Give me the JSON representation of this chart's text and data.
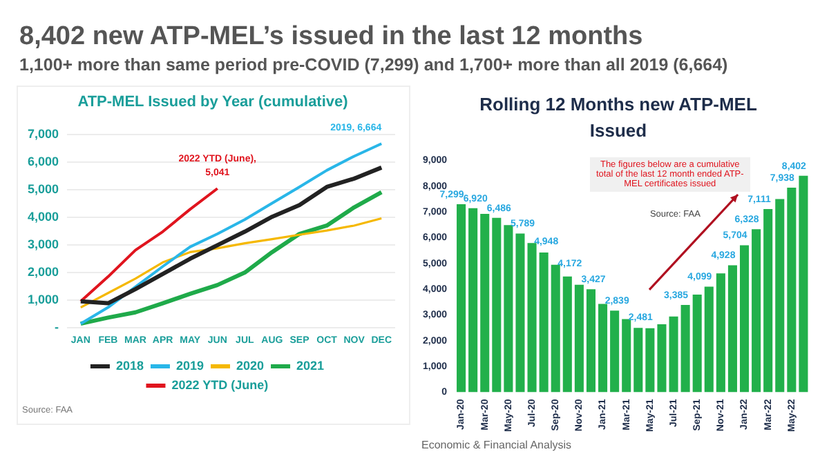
{
  "chart_data": [
    {
      "type": "line",
      "title": "ATP-MEL Issued by Year (cumulative)",
      "categories": [
        "JAN",
        "FEB",
        "MAR",
        "APR",
        "MAY",
        "JUN",
        "JUL",
        "AUG",
        "SEP",
        "OCT",
        "NOV",
        "DEC"
      ],
      "series": [
        {
          "name": "2018",
          "color": "#222222",
          "values": [
            960,
            890,
            1400,
            1950,
            2500,
            2990,
            3480,
            4020,
            4440,
            5100,
            5400,
            5800
          ]
        },
        {
          "name": "2019",
          "color": "#29b6e8",
          "values": [
            150,
            740,
            1480,
            2220,
            2930,
            3400,
            3920,
            4510,
            5100,
            5700,
            6210,
            6664
          ]
        },
        {
          "name": "2020",
          "color": "#f5b800",
          "values": [
            740,
            1260,
            1780,
            2370,
            2740,
            2880,
            3060,
            3210,
            3370,
            3520,
            3700,
            3960
          ]
        },
        {
          "name": "2021",
          "color": "#1faa4a",
          "values": [
            150,
            370,
            560,
            890,
            1230,
            1550,
            2000,
            2740,
            3400,
            3700,
            4360,
            4910
          ]
        },
        {
          "name": "2022 YTD (June)",
          "color": "#e0141e",
          "values": [
            960,
            1850,
            2810,
            3480,
            4290,
            5041,
            null,
            null,
            null,
            null,
            null,
            null
          ]
        }
      ],
      "ylim": [
        0,
        7000
      ],
      "yticks": [
        {
          "value": 0,
          "label": "-"
        },
        {
          "value": 1000,
          "label": "1,000"
        },
        {
          "value": 2000,
          "label": "2,000"
        },
        {
          "value": 3000,
          "label": "3,000"
        },
        {
          "value": 4000,
          "label": "4,000"
        },
        {
          "value": 5000,
          "label": "5,000"
        },
        {
          "value": 6000,
          "label": "6,000"
        },
        {
          "value": 7000,
          "label": "7,000"
        }
      ],
      "grid": "y",
      "legend": "bottom",
      "marker": "none",
      "line_style": "solid",
      "annotations": [
        "8,402 new ATP-MEL’s issued in the last 12 months",
        "1,100+ more than same period pre-COVID (7,299) and 1,700+ more than all 2019 (6,664)",
        "Economic & Financial Analysis",
        "Source: FAA",
        {
          "text": "2019, 6,664",
          "x": "DEC",
          "y": 6664
        },
        {
          "text": "2022 YTD (June), 5,041",
          "x": "JUN",
          "y": 5041
        }
      ]
    },
    {
      "type": "bar",
      "title": "Rolling 12 Months new ATP-MEL Issued",
      "categories": [
        "Jan-20",
        null,
        "Mar-20",
        null,
        "May-20",
        null,
        "Jul-20",
        null,
        "Sep-20",
        null,
        "Nov-20",
        null,
        "Jan-21",
        null,
        "Mar-21",
        null,
        "May-21",
        null,
        "Jul-21",
        null,
        "Sep-21",
        null,
        "Nov-21",
        null,
        "Jan-22",
        null,
        "Mar-22",
        null,
        "May-22",
        null
      ],
      "values": [
        7299,
        7140,
        6920,
        6770,
        6486,
        6160,
        5789,
        5420,
        4948,
        4490,
        4172,
        4000,
        3427,
        3170,
        2839,
        2500,
        2481,
        2640,
        2940,
        3385,
        3790,
        4099,
        4610,
        4928,
        5704,
        6328,
        7111,
        7500,
        7938,
        8402
      ],
      "value_labels": [
        "7,299",
        null,
        "6,920",
        null,
        "6,486",
        null,
        "5,789",
        null,
        "4,948",
        null,
        "4,172",
        null,
        "3,427",
        null,
        "2,839",
        null,
        "2,481",
        null,
        null,
        "3,385",
        null,
        "4,099",
        null,
        "4,928",
        "5,704",
        "6,328",
        "7,111",
        null,
        "7,938",
        "8,402"
      ],
      "color": "#22b04b",
      "ylim": [
        0,
        9000
      ],
      "yticks": [
        0,
        {
          "value": 1000,
          "label": "1,000"
        },
        {
          "value": 2000,
          "label": "2,000"
        },
        {
          "value": 3000,
          "label": "3,000"
        },
        {
          "value": 4000,
          "label": "4,000"
        },
        {
          "value": 5000,
          "label": "5,000"
        },
        {
          "value": 6000,
          "label": "6,000"
        },
        {
          "value": 7000,
          "label": "7,000"
        },
        {
          "value": 8000,
          "label": "8,000"
        },
        {
          "value": 9000,
          "label": "9,000"
        }
      ],
      "annotations": [
        "The figures below are a cumulative total of the last 12 month ended ATP-MEL certificates issued",
        "Source: FAA"
      ]
    }
  ]
}
